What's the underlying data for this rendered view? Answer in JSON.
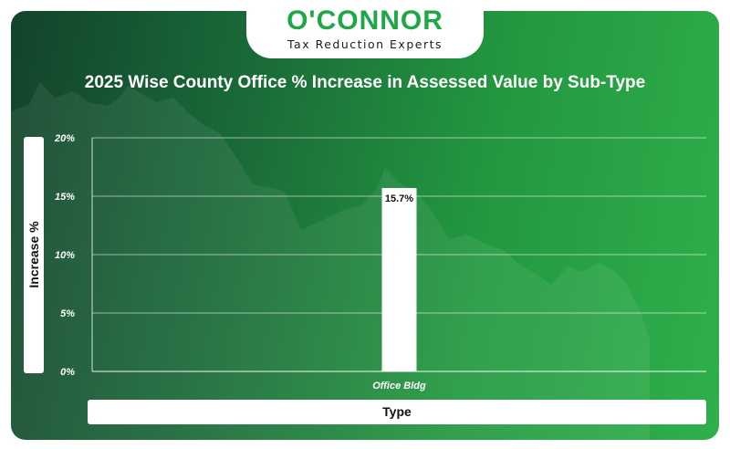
{
  "brand": {
    "name": "O'CONNOR",
    "tagline": "Tax Reduction Experts",
    "accent": "#1ea845"
  },
  "chart_data": {
    "type": "bar",
    "title": "2025 Wise County Office % Increase in Assessed Value by Sub-Type",
    "xlabel": "Type",
    "ylabel": "Increase %",
    "categories": [
      "Office Bldg"
    ],
    "values": [
      15.7
    ],
    "value_labels": [
      "15.7%"
    ],
    "ylim": [
      0,
      20
    ],
    "yticks": [
      0,
      5,
      10,
      15,
      20
    ],
    "ytick_labels": [
      "0%",
      "5%",
      "10%",
      "15%",
      "20%"
    ],
    "grid": true,
    "bar_color": "#ffffff"
  }
}
